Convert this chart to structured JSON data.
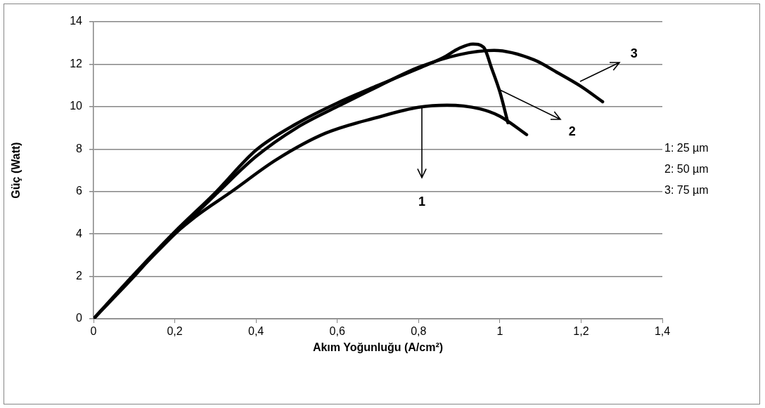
{
  "chart_data": {
    "type": "line",
    "xlabel": "Akım Yoğunluğu (A/cm²)",
    "ylabel": "Güç (Watt)",
    "xlim": [
      0,
      1.4
    ],
    "xticks": [
      0,
      {
        "value": 0.2,
        "label": "0,2"
      },
      {
        "value": 0.4,
        "label": "0,4"
      },
      {
        "value": 0.6,
        "label": "0,6"
      },
      {
        "value": 0.8,
        "label": "0,8"
      },
      1,
      {
        "value": 1.2,
        "label": "1,2"
      },
      {
        "value": 1.4,
        "label": "1,4"
      }
    ],
    "ylim": [
      0,
      14
    ],
    "yticks": [
      0,
      2,
      4,
      6,
      8,
      10,
      12,
      14
    ],
    "grid": "y",
    "legend": false,
    "marker": "none",
    "line_style": "solid",
    "series": [
      {
        "color": "#000000",
        "x": [
          0,
          0.1,
          0.168,
          0.25,
          0.34,
          0.45,
          0.57,
          0.7,
          0.8,
          0.87,
          0.95,
          1.0,
          1.066
        ],
        "values": [
          0,
          2.0,
          3.44,
          4.8,
          6.0,
          7.5,
          8.74,
          9.5,
          9.97,
          10.07,
          9.9,
          9.55,
          8.68
        ]
      },
      {
        "color": "#000000",
        "x": [
          0,
          0.1,
          0.2,
          0.3,
          0.4,
          0.5,
          0.6,
          0.7,
          0.8,
          0.86,
          0.9,
          0.934,
          0.96,
          0.98,
          1.0,
          1.02
        ],
        "values": [
          0,
          2.1,
          4.1,
          5.95,
          7.95,
          9.2,
          10.17,
          11.0,
          11.8,
          12.3,
          12.75,
          12.95,
          12.8,
          11.8,
          10.7,
          9.24
        ]
      },
      {
        "color": "#000000",
        "x": [
          0,
          0.1,
          0.2,
          0.3,
          0.4,
          0.5,
          0.6,
          0.7,
          0.8,
          0.9,
          0.986,
          1.085,
          1.142,
          1.2,
          1.253
        ],
        "values": [
          0,
          2.05,
          4.0,
          5.85,
          7.65,
          9.0,
          10.0,
          10.95,
          11.85,
          12.45,
          12.65,
          12.2,
          11.6,
          10.95,
          10.23
        ]
      }
    ],
    "annotations": [
      "1",
      {
        "text": "2",
        "x": 1.0,
        "y": 10.8
      },
      {
        "text": "3",
        "x": 1.197,
        "y": 11.2
      },
      "1: 25 µm",
      "2: 50 µm",
      "3: 75 µm"
    ]
  }
}
